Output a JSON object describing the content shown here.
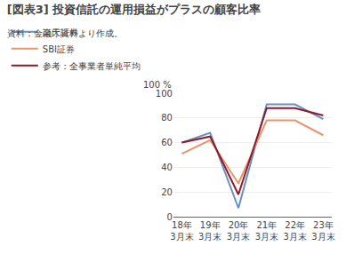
{
  "chart_data": {
    "type": "line",
    "title": "[図表3] 投資信託の運用損益がプラスの顧客比率",
    "subtitle": "資料：金融庁資料より作成。",
    "annotations": [
      "100 %"
    ],
    "categories": [
      "18年\n3月末",
      "19年\n3月末",
      "20年\n3月末",
      "21年\n3月末",
      "22年\n3月末",
      "23年\n3月末"
    ],
    "series": [
      {
        "name": "楽天証券",
        "color": "#6a8fc0",
        "values": [
          60,
          68,
          7,
          91,
          91,
          79
        ]
      },
      {
        "name": "SBI証券",
        "color": "#e8956d",
        "values": [
          51,
          62,
          27,
          78,
          78,
          66
        ]
      },
      {
        "name": "参考：全事業者単純平均",
        "color": "#8b1a2a",
        "values": [
          60,
          65,
          18,
          88,
          88,
          82
        ]
      }
    ],
    "ylim": [
      0,
      100
    ],
    "yticks": [
      0,
      20,
      40,
      60,
      80,
      100
    ],
    "grid": true,
    "legend": "top"
  }
}
